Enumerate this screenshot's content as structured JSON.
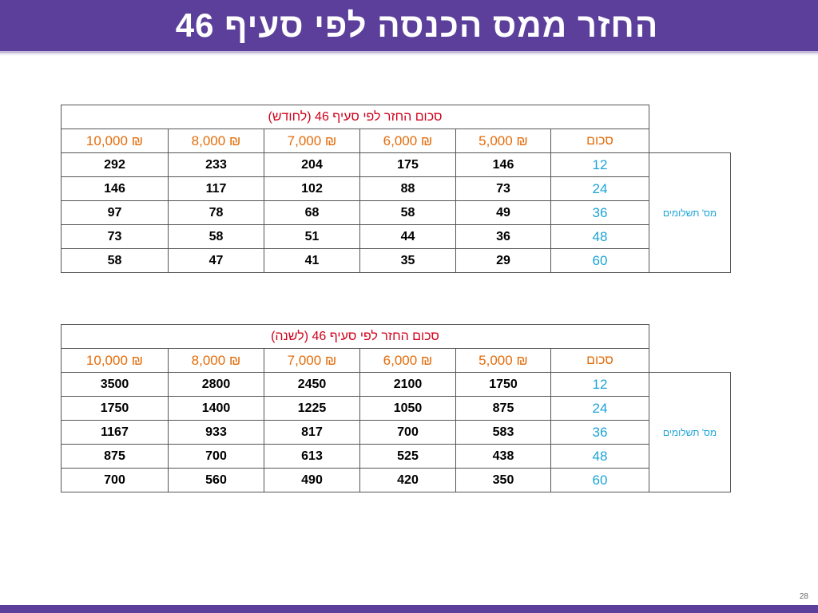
{
  "title": "החזר ממס הכנסה לפי סעיף 46",
  "slide_number": "28",
  "tables": [
    {
      "header_title": "סכום החזר לפי סעיף 46 (לחודש)",
      "amounts": [
        "10,000 ₪",
        "8,000 ₪",
        "7,000 ₪",
        "6,000 ₪",
        "5,000 ₪"
      ],
      "sum_label": "סכום",
      "side_label": "מס' תשלומים",
      "rows": [
        {
          "payments": "12",
          "values": [
            "292",
            "233",
            "204",
            "175",
            "146"
          ]
        },
        {
          "payments": "24",
          "values": [
            "146",
            "117",
            "102",
            "88",
            "73"
          ]
        },
        {
          "payments": "36",
          "values": [
            "97",
            "78",
            "68",
            "58",
            "49"
          ]
        },
        {
          "payments": "48",
          "values": [
            "73",
            "58",
            "51",
            "44",
            "36"
          ]
        },
        {
          "payments": "60",
          "values": [
            "58",
            "47",
            "41",
            "35",
            "29"
          ]
        }
      ]
    },
    {
      "header_title": "סכום החזר לפי סעיף 46 (לשנה)",
      "amounts": [
        "10,000 ₪",
        "8,000 ₪",
        "7,000 ₪",
        "6,000 ₪",
        "5,000 ₪"
      ],
      "sum_label": "סכום",
      "side_label": "מס' תשלומים",
      "rows": [
        {
          "payments": "12",
          "values": [
            "3500",
            "2800",
            "2450",
            "2100",
            "1750"
          ]
        },
        {
          "payments": "24",
          "values": [
            "1750",
            "1400",
            "1225",
            "1050",
            "875"
          ]
        },
        {
          "payments": "36",
          "values": [
            "1167",
            "933",
            "817",
            "700",
            "583"
          ]
        },
        {
          "payments": "48",
          "values": [
            "875",
            "700",
            "613",
            "525",
            "438"
          ]
        },
        {
          "payments": "60",
          "values": [
            "700",
            "560",
            "490",
            "420",
            "350"
          ]
        }
      ]
    }
  ],
  "colors": {
    "title_bar": "#5b3f9b",
    "header_title": "#d0021b",
    "amount": "#e46c0a",
    "payments": "#1aa3d6"
  }
}
